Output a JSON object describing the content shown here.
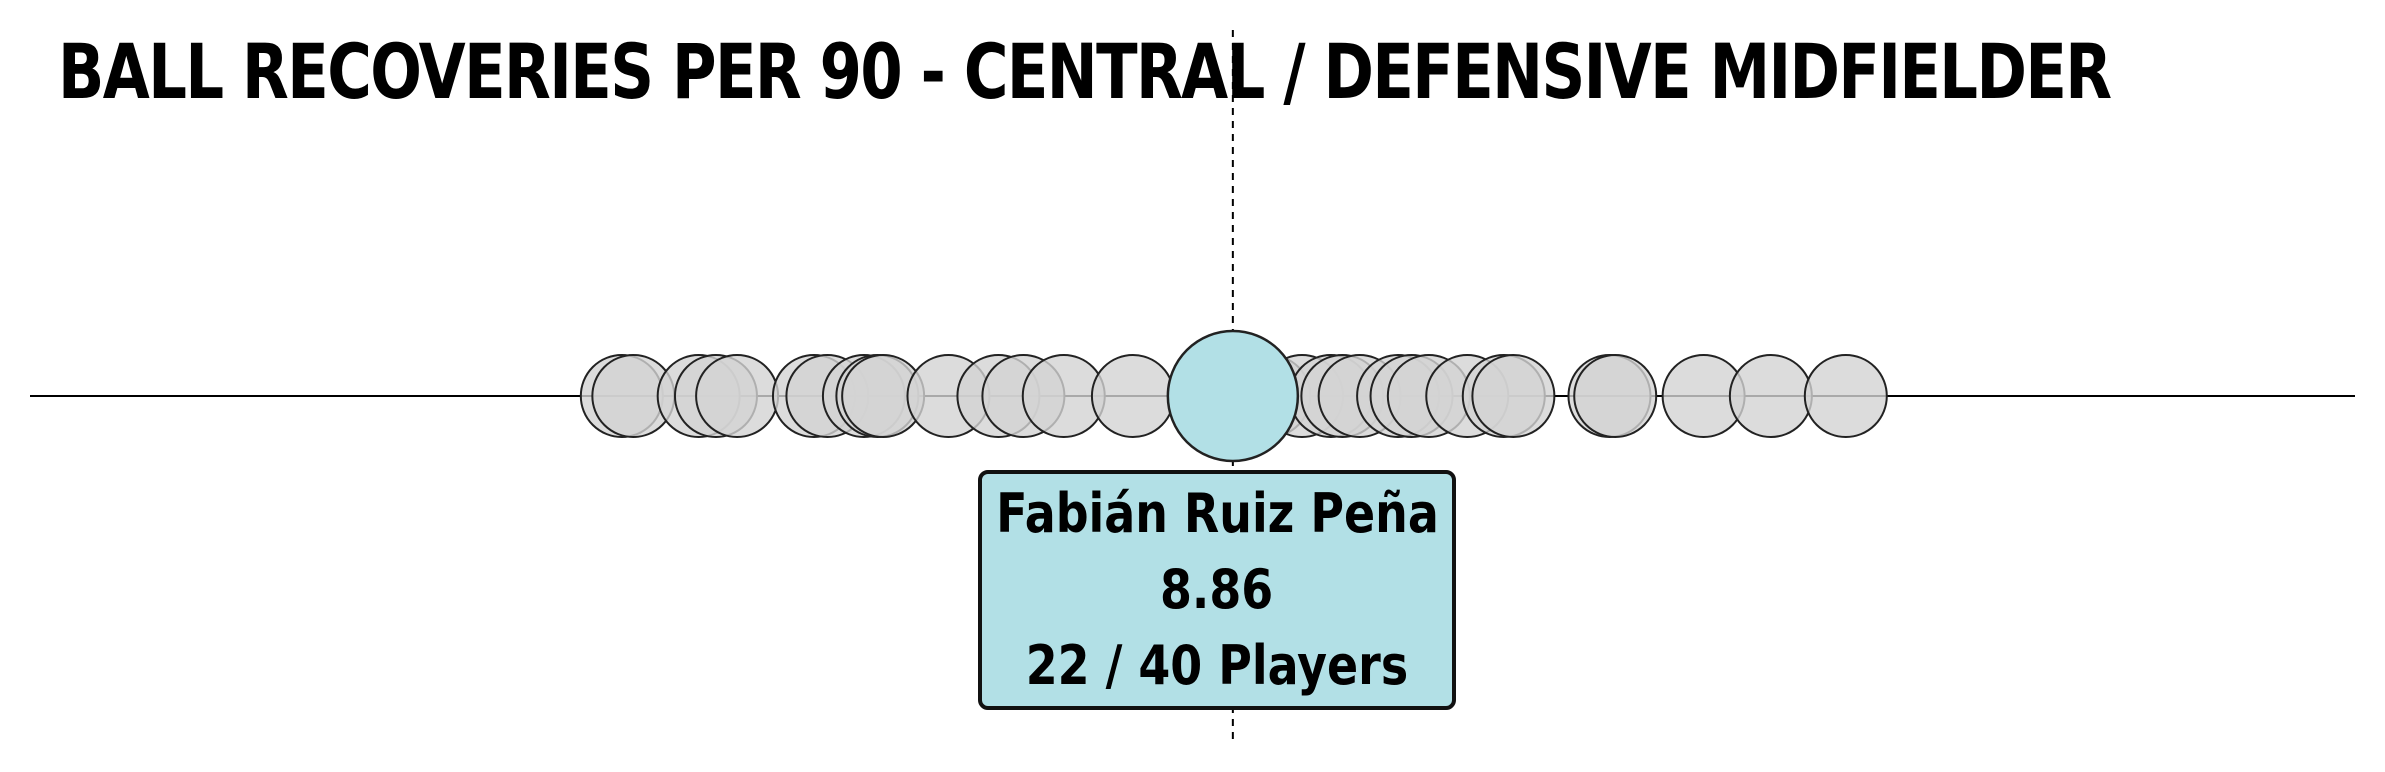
{
  "chart_data": {
    "type": "scatter",
    "title": "BALL RECOVERIES PER 90 - CENTRAL / DEFENSIVE MIDFIELDER",
    "xlabel": "",
    "ylabel": "",
    "xlim": [
      2.6,
      14.7
    ],
    "grid": false,
    "legend": "none",
    "reference_line_x": 8.86,
    "values": [
      5.68,
      5.74,
      6.08,
      6.17,
      6.28,
      6.68,
      6.75,
      6.94,
      7.01,
      7.04,
      7.38,
      7.64,
      7.77,
      7.98,
      8.34,
      9.05,
      9.22,
      9.37,
      9.43,
      9.52,
      9.72,
      9.79,
      9.88,
      10.08,
      10.27,
      10.32,
      10.82,
      10.85,
      11.31,
      11.66,
      12.05
    ],
    "highlighted": {
      "name": "Fabián Ruiz Peña",
      "value": 8.86,
      "rank_label": "22 / 40 Players",
      "color": "#b2e0e6"
    },
    "point_color": "#d3d3d3",
    "point_edge_color": "#222222",
    "line_color": "#000000"
  }
}
